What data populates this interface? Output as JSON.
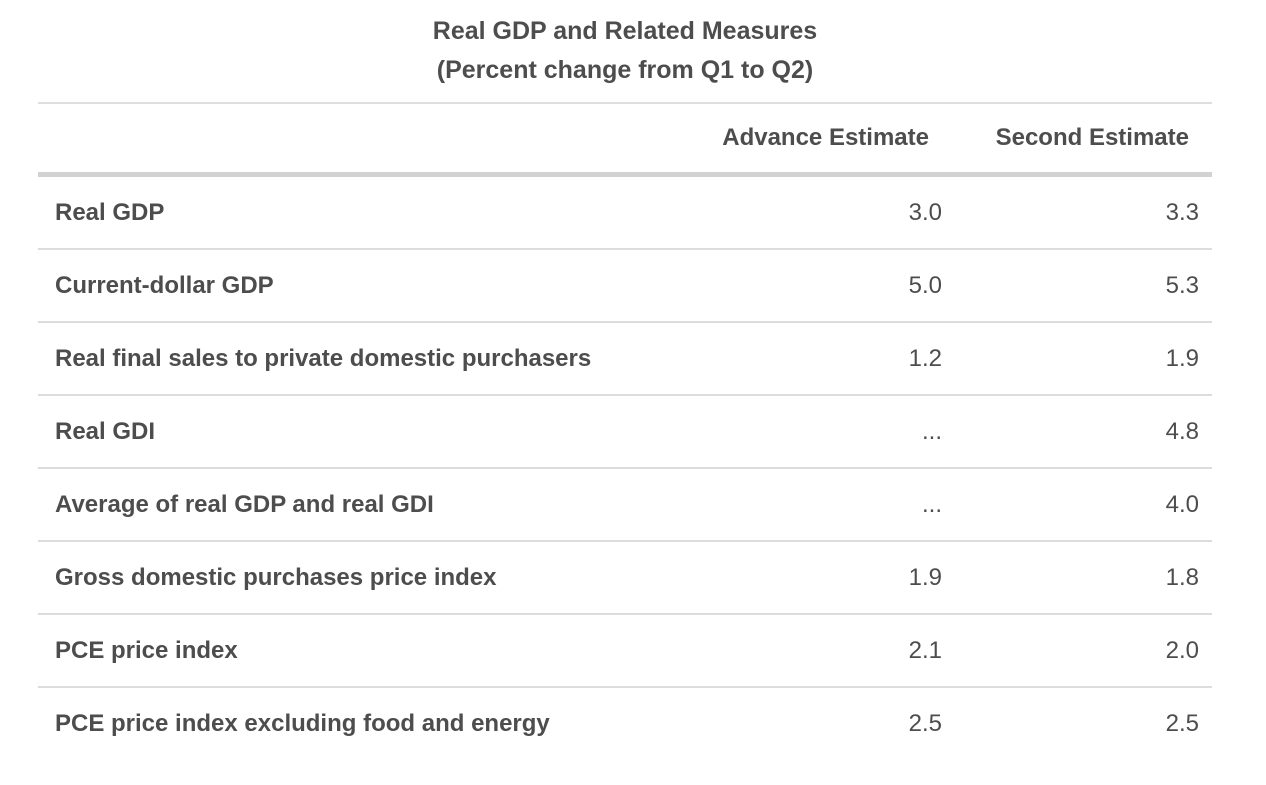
{
  "title": {
    "line1": "Real GDP and Related Measures",
    "line2": "(Percent change from Q1 to Q2)"
  },
  "table": {
    "label_header": "",
    "col_advance": "Advance Estimate",
    "col_second": "Second Estimate",
    "rows": [
      {
        "label": "Real GDP",
        "advance": "3.0",
        "second": "3.3"
      },
      {
        "label": "Current-dollar GDP",
        "advance": "5.0",
        "second": "5.3"
      },
      {
        "label": "Real final sales to private domestic purchasers",
        "advance": "1.2",
        "second": "1.9"
      },
      {
        "label": "Real GDI",
        "advance": "...",
        "second": "4.8"
      },
      {
        "label": "Average of real GDP and real GDI",
        "advance": "...",
        "second": "4.0"
      },
      {
        "label": "Gross domestic purchases price index",
        "advance": "1.9",
        "second": "1.8"
      },
      {
        "label": "PCE price index",
        "advance": "2.1",
        "second": "2.0"
      },
      {
        "label": "PCE price index excluding food and energy",
        "advance": "2.5",
        "second": "2.5"
      }
    ]
  },
  "colors": {
    "text": "#4d4d4d",
    "row_divider": "#dcdcdc",
    "header_divider": "#d2d2d2",
    "top_border": "#dedede",
    "background": "#ffffff"
  },
  "chart_data": {
    "type": "table",
    "title": "Real GDP and Related Measures",
    "subtitle": "(Percent change from Q1 to Q2)",
    "columns": [
      "Advance Estimate",
      "Second Estimate"
    ],
    "row_labels": [
      "Real GDP",
      "Current-dollar GDP",
      "Real final sales to private domestic purchasers",
      "Real GDI",
      "Average of real GDP and real GDI",
      "Gross domestic purchases price index",
      "PCE price index",
      "PCE price index excluding food and energy"
    ],
    "series": [
      {
        "name": "Advance Estimate",
        "values": [
          3.0,
          5.0,
          1.2,
          null,
          null,
          1.9,
          2.1,
          2.5
        ]
      },
      {
        "name": "Second Estimate",
        "values": [
          3.3,
          5.3,
          1.9,
          4.8,
          4.0,
          1.8,
          2.0,
          2.5
        ]
      }
    ],
    "missing_value_marker": "...",
    "layout": {
      "grid": "horizontal-row-dividers",
      "value_alignment": "right"
    }
  }
}
